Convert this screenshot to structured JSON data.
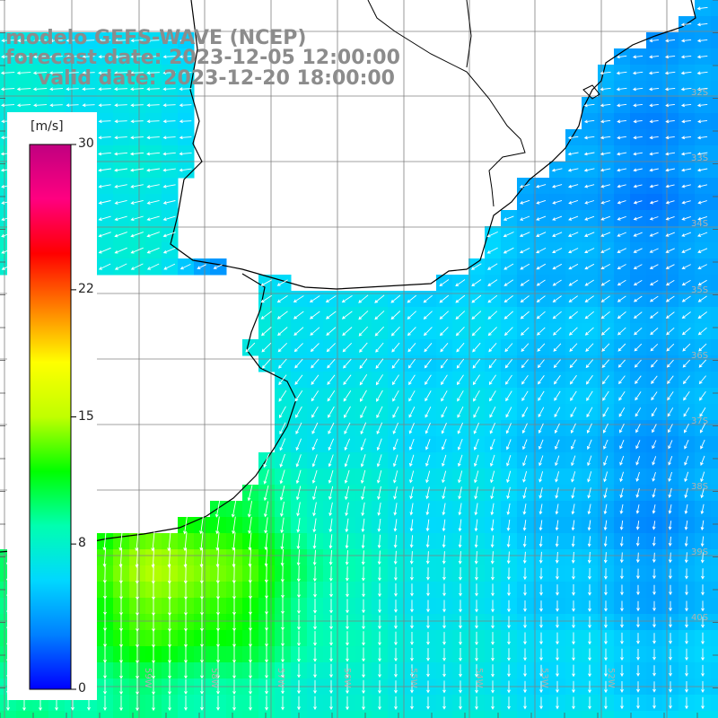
{
  "title": {
    "line1": "modelo GEFS-WAVE (NCEP)",
    "line2": "forecast date: 2023-12-05 12:00:00",
    "line3": "valid date: 2023-12-20 18:00:00"
  },
  "colorbar": {
    "units": "[m/s]",
    "min": 0,
    "max": 30,
    "ticks": [
      {
        "value": 30,
        "label": "30"
      },
      {
        "value": 22,
        "label": "22"
      },
      {
        "value": 15,
        "label": "15"
      },
      {
        "value": 8,
        "label": "8"
      },
      {
        "value": 0,
        "label": "0"
      }
    ],
    "colors": [
      "#0000ff",
      "#0080ff",
      "#00d8ff",
      "#00ffb0",
      "#00ff00",
      "#c0ff00",
      "#ffff00",
      "#ff8000",
      "#ff0000",
      "#ff0080",
      "#c00080"
    ]
  },
  "map": {
    "lon_range": [
      -62,
      -51
    ],
    "lat_range": [
      -41,
      -30
    ],
    "lat_labels": [
      "32S",
      "33S",
      "34S",
      "35S",
      "36S",
      "37S",
      "38S",
      "39S",
      "40S"
    ],
    "lon_labels": [
      "61W",
      "60W",
      "59W",
      "58W",
      "57W",
      "56W",
      "55W",
      "54W",
      "53W",
      "52W"
    ],
    "land_color": "#ffffff",
    "grid_color": "#808080",
    "coast_color": "#000000",
    "vector_color": "#ffffff"
  }
}
